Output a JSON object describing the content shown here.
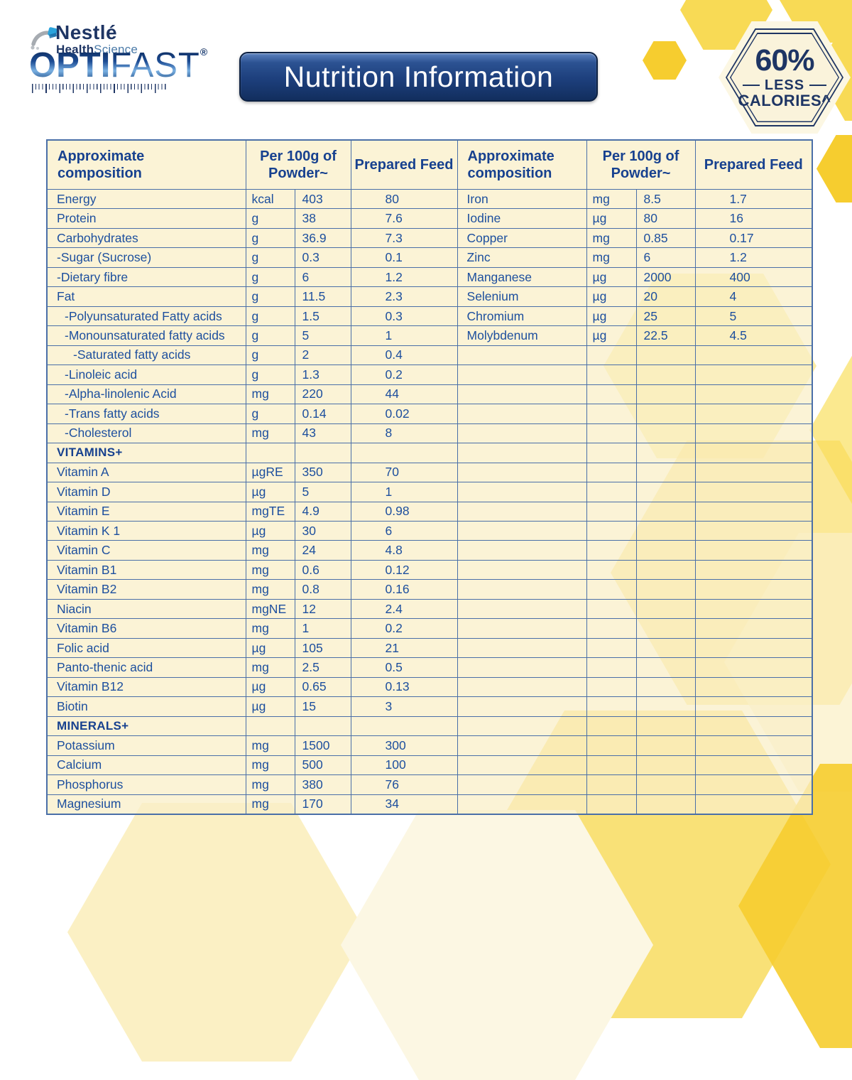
{
  "branding": {
    "nestle": "Nestlé",
    "health": "Health",
    "science": "Science",
    "optifast_opti": "OPTI",
    "optifast_fast": "FAST",
    "registered": "®"
  },
  "title": "Nutrition Information",
  "badge": {
    "percent": "60%",
    "less": "LESS",
    "calories": "CALORIES^"
  },
  "table": {
    "headers": {
      "composition": "Approximate composition",
      "per100g": "Per 100g of Powder~",
      "prepared": "Prepared Feed"
    },
    "left_rows": [
      {
        "name": "Energy",
        "unit": "kcal",
        "per100g": "403",
        "prepared": "80"
      },
      {
        "name": "Protein",
        "unit": "g",
        "per100g": "38",
        "prepared": "7.6"
      },
      {
        "name": "Carbohydrates",
        "unit": "g",
        "per100g": "36.9",
        "prepared": "7.3"
      },
      {
        "name": "-Sugar (Sucrose)",
        "unit": "g",
        "per100g": "0.3",
        "prepared": "0.1"
      },
      {
        "name": "-Dietary fibre",
        "unit": "g",
        "per100g": "6",
        "prepared": "1.2"
      },
      {
        "name": "Fat",
        "unit": "g",
        "per100g": "11.5",
        "prepared": "2.3"
      },
      {
        "name": "-Polyunsaturated Fatty acids",
        "unit": "g",
        "per100g": "1.5",
        "prepared": "0.3",
        "indent": 1
      },
      {
        "name": "-Monounsaturated fatty acids",
        "unit": "g",
        "per100g": "5",
        "prepared": "1",
        "indent": 1
      },
      {
        "name": "-Saturated fatty acids",
        "unit": "g",
        "per100g": "2",
        "prepared": "0.4",
        "indent": 2
      },
      {
        "name": "-Linoleic acid",
        "unit": "g",
        "per100g": "1.3",
        "prepared": "0.2",
        "indent": 1
      },
      {
        "name": "-Alpha-linolenic Acid",
        "unit": "mg",
        "per100g": "220",
        "prepared": "44",
        "indent": 1
      },
      {
        "name": "-Trans fatty acids",
        "unit": "g",
        "per100g": "0.14",
        "prepared": "0.02",
        "indent": 1
      },
      {
        "name": "-Cholesterol",
        "unit": "mg",
        "per100g": "43",
        "prepared": "8",
        "indent": 1
      },
      {
        "name": "VITAMINS+",
        "unit": "",
        "per100g": "",
        "prepared": "",
        "section": true
      },
      {
        "name": "Vitamin A",
        "unit": "µgRE",
        "per100g": "350",
        "prepared": "70"
      },
      {
        "name": "Vitamin D",
        "unit": "µg",
        "per100g": "5",
        "prepared": "1"
      },
      {
        "name": "Vitamin E",
        "unit": "mgTE",
        "per100g": "4.9",
        "prepared": "0.98"
      },
      {
        "name": "Vitamin K 1",
        "unit": "µg",
        "per100g": "30",
        "prepared": "6"
      },
      {
        "name": "Vitamin C",
        "unit": "mg",
        "per100g": "24",
        "prepared": "4.8"
      },
      {
        "name": "Vitamin B1",
        "unit": "mg",
        "per100g": "0.6",
        "prepared": "0.12"
      },
      {
        "name": "Vitamin B2",
        "unit": "mg",
        "per100g": "0.8",
        "prepared": "0.16"
      },
      {
        "name": "Niacin",
        "unit": "mgNE",
        "per100g": "12",
        "prepared": "2.4"
      },
      {
        "name": "Vitamin B6",
        "unit": "mg",
        "per100g": "1",
        "prepared": "0.2"
      },
      {
        "name": "Folic acid",
        "unit": "µg",
        "per100g": "105",
        "prepared": "21"
      },
      {
        "name": "Panto-thenic acid",
        "unit": "mg",
        "per100g": "2.5",
        "prepared": "0.5"
      },
      {
        "name": "Vitamin B12",
        "unit": "µg",
        "per100g": "0.65",
        "prepared": "0.13"
      },
      {
        "name": "Biotin",
        "unit": "µg",
        "per100g": "15",
        "prepared": "3"
      },
      {
        "name": "MINERALS+",
        "unit": "",
        "per100g": "",
        "prepared": "",
        "section": true
      },
      {
        "name": "Potassium",
        "unit": "mg",
        "per100g": "1500",
        "prepared": "300"
      },
      {
        "name": "Calcium",
        "unit": "mg",
        "per100g": "500",
        "prepared": "100"
      },
      {
        "name": "Phosphorus",
        "unit": "mg",
        "per100g": "380",
        "prepared": "76"
      },
      {
        "name": "Magnesium",
        "unit": "mg",
        "per100g": "170",
        "prepared": "34"
      }
    ],
    "right_rows": [
      {
        "name": "Iron",
        "unit": "mg",
        "per100g": "8.5",
        "prepared": "1.7"
      },
      {
        "name": "Iodine",
        "unit": "µg",
        "per100g": "80",
        "prepared": "16"
      },
      {
        "name": "Copper",
        "unit": "mg",
        "per100g": "0.85",
        "prepared": "0.17"
      },
      {
        "name": "Zinc",
        "unit": "mg",
        "per100g": "6",
        "prepared": "1.2"
      },
      {
        "name": "Manganese",
        "unit": "µg",
        "per100g": "2000",
        "prepared": "400"
      },
      {
        "name": "Selenium",
        "unit": "µg",
        "per100g": "20",
        "prepared": "4"
      },
      {
        "name": "Chromium",
        "unit": "µg",
        "per100g": "25",
        "prepared": "5"
      },
      {
        "name": "Molybdenum",
        "unit": "µg",
        "per100g": "22.5",
        "prepared": "4.5"
      },
      {},
      {},
      {},
      {},
      {},
      {},
      {},
      {},
      {},
      {},
      {},
      {},
      {},
      {},
      {},
      {},
      {},
      {},
      {},
      {},
      {},
      {},
      {},
      {}
    ]
  },
  "colors": {
    "navy": "#1e3564",
    "text": "#1d4f9e",
    "headtext": "#17418f",
    "grid": "#4a6fa8",
    "cell": "rgba(250,239,200,0.74)",
    "cream": "#faf3db",
    "hex_bright": "#f6cd2f",
    "hex_mid": "#f8da55",
    "hex_soft": "#fbe98f",
    "hex_pale": "#fbf0c4",
    "hex_cream": "#fcf7e3"
  }
}
